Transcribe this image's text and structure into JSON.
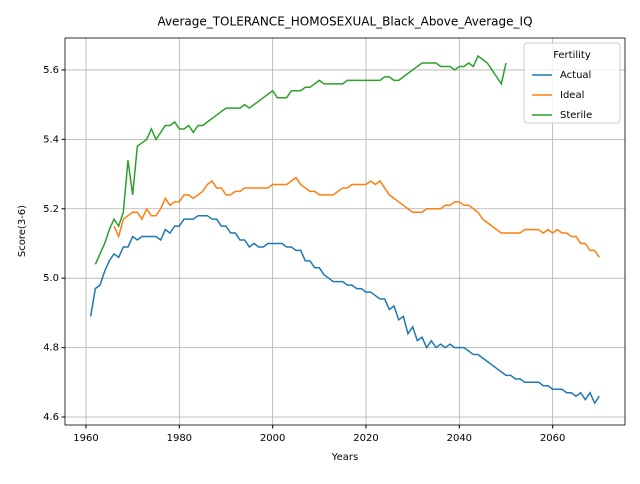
{
  "chart_data": {
    "type": "line",
    "title": "Average_TOLERANCE_HOMOSEXUAL_Black_Above_Average_IQ",
    "x_label": "Years",
    "y_label": "Score(3-6)",
    "x": [
      1961,
      1962,
      1963,
      1964,
      1965,
      1966,
      1967,
      1968,
      1969,
      1970,
      1971,
      1972,
      1973,
      1974,
      1975,
      1976,
      1977,
      1978,
      1979,
      1980,
      1981,
      1982,
      1983,
      1984,
      1985,
      1986,
      1987,
      1988,
      1989,
      1990,
      1991,
      1992,
      1993,
      1994,
      1995,
      1996,
      1997,
      1998,
      1999,
      2000,
      2001,
      2002,
      2003,
      2004,
      2005,
      2006,
      2007,
      2008,
      2009,
      2010,
      2011,
      2012,
      2013,
      2014,
      2015,
      2016,
      2017,
      2018,
      2019,
      2020,
      2021,
      2022,
      2023,
      2024,
      2025,
      2026,
      2027,
      2028,
      2029,
      2030,
      2031,
      2032,
      2033,
      2034,
      2035,
      2036,
      2037,
      2038,
      2039,
      2040,
      2041,
      2042,
      2043,
      2044,
      2045,
      2046,
      2047,
      2048,
      2049,
      2050,
      2051,
      2052,
      2053,
      2054,
      2055,
      2056,
      2057,
      2058,
      2059,
      2060,
      2061,
      2062,
      2063,
      2064,
      2065,
      2066,
      2067,
      2068,
      2069,
      2070
    ],
    "series": [
      {
        "name": "Actual",
        "color": "#1f77b4",
        "values": [
          4.89,
          4.97,
          4.98,
          5.02,
          5.05,
          5.07,
          5.06,
          5.09,
          5.09,
          5.12,
          5.11,
          5.12,
          5.12,
          5.12,
          5.12,
          5.11,
          5.14,
          5.13,
          5.15,
          5.15,
          5.17,
          5.17,
          5.17,
          5.18,
          5.18,
          5.18,
          5.17,
          5.17,
          5.15,
          5.15,
          5.13,
          5.13,
          5.11,
          5.11,
          5.09,
          5.1,
          5.09,
          5.09,
          5.1,
          5.1,
          5.1,
          5.1,
          5.09,
          5.09,
          5.08,
          5.08,
          5.05,
          5.05,
          5.03,
          5.03,
          5.01,
          5.0,
          4.99,
          4.99,
          4.99,
          4.98,
          4.98,
          4.97,
          4.97,
          4.96,
          4.96,
          4.95,
          4.94,
          4.94,
          4.91,
          4.92,
          4.88,
          4.89,
          4.84,
          4.86,
          4.82,
          4.83,
          4.8,
          4.82,
          4.8,
          4.81,
          4.8,
          4.81,
          4.8,
          4.8,
          4.8,
          4.79,
          4.78,
          4.78,
          4.77,
          4.76,
          4.75,
          4.74,
          4.73,
          4.72,
          4.72,
          4.71,
          4.71,
          4.7,
          4.7,
          4.7,
          4.7,
          4.69,
          4.69,
          4.68,
          4.68,
          4.68,
          4.67,
          4.67,
          4.66,
          4.67,
          4.65,
          4.67,
          4.64,
          4.66
        ]
      },
      {
        "name": "Ideal",
        "color": "#ff7f0e",
        "values": [
          null,
          null,
          null,
          null,
          null,
          5.15,
          5.12,
          5.17,
          5.18,
          5.19,
          5.19,
          5.17,
          5.2,
          5.18,
          5.18,
          5.2,
          5.23,
          5.21,
          5.22,
          5.22,
          5.24,
          5.24,
          5.23,
          5.24,
          5.25,
          5.27,
          5.28,
          5.26,
          5.26,
          5.24,
          5.24,
          5.25,
          5.25,
          5.26,
          5.26,
          5.26,
          5.26,
          5.26,
          5.26,
          5.27,
          5.27,
          5.27,
          5.27,
          5.28,
          5.29,
          5.27,
          5.26,
          5.25,
          5.25,
          5.24,
          5.24,
          5.24,
          5.24,
          5.25,
          5.26,
          5.26,
          5.27,
          5.27,
          5.27,
          5.27,
          5.28,
          5.27,
          5.28,
          5.26,
          5.24,
          5.23,
          5.22,
          5.21,
          5.2,
          5.19,
          5.19,
          5.19,
          5.2,
          5.2,
          5.2,
          5.2,
          5.21,
          5.21,
          5.22,
          5.22,
          5.21,
          5.21,
          5.2,
          5.19,
          5.17,
          5.16,
          5.15,
          5.14,
          5.13,
          5.13,
          5.13,
          5.13,
          5.13,
          5.14,
          5.14,
          5.14,
          5.14,
          5.13,
          5.14,
          5.13,
          5.14,
          5.13,
          5.13,
          5.12,
          5.12,
          5.1,
          5.1,
          5.08,
          5.08,
          5.06
        ]
      },
      {
        "name": "Sterile",
        "color": "#2ca02c",
        "values": [
          null,
          5.04,
          5.07,
          5.1,
          5.14,
          5.17,
          5.15,
          5.19,
          5.34,
          5.24,
          5.38,
          5.39,
          5.4,
          5.43,
          5.4,
          5.42,
          5.44,
          5.44,
          5.45,
          5.43,
          5.43,
          5.44,
          5.42,
          5.44,
          5.44,
          5.45,
          5.46,
          5.47,
          5.48,
          5.49,
          5.49,
          5.49,
          5.49,
          5.5,
          5.49,
          5.5,
          5.51,
          5.52,
          5.53,
          5.54,
          5.52,
          5.52,
          5.52,
          5.54,
          5.54,
          5.54,
          5.55,
          5.55,
          5.56,
          5.57,
          5.56,
          5.56,
          5.56,
          5.56,
          5.56,
          5.57,
          5.57,
          5.57,
          5.57,
          5.57,
          5.57,
          5.57,
          5.57,
          5.58,
          5.58,
          5.57,
          5.57,
          5.58,
          5.59,
          5.6,
          5.61,
          5.62,
          5.62,
          5.62,
          5.62,
          5.61,
          5.61,
          5.61,
          5.6,
          5.61,
          5.61,
          5.62,
          5.61,
          5.64,
          5.63,
          5.62,
          5.6,
          5.58,
          5.56,
          5.62,
          null,
          null,
          null,
          null,
          null,
          null,
          null,
          null,
          null,
          null,
          null,
          null,
          null,
          null,
          null,
          null,
          null,
          null,
          null,
          null
        ]
      }
    ],
    "xlim": [
      1955.5,
      2075.5
    ],
    "ylim": [
      4.577,
      5.692
    ],
    "xticks": [
      1960,
      1980,
      2000,
      2020,
      2040,
      2060
    ],
    "yticks": [
      4.6,
      4.8,
      {
        "value": 5,
        "label": "5.0"
      },
      5.2,
      5.4,
      5.6
    ],
    "grid": true,
    "legend_title": "Fertility",
    "legend_loc": "upper right"
  }
}
